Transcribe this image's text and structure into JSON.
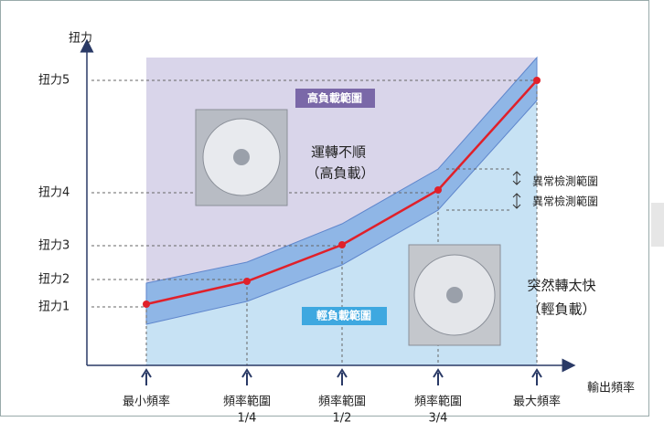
{
  "y_axis": {
    "label": "扭力",
    "ticks": [
      "扭力5",
      "扭力4",
      "扭力3",
      "扭力2",
      "扭力1"
    ]
  },
  "x_axis": {
    "label": "輸出頻率",
    "ticks": [
      [
        "最小頻率"
      ],
      [
        "頻率範圍",
        "1/4"
      ],
      [
        "頻率範圍",
        "1/2"
      ],
      [
        "頻率範圍",
        "3/4"
      ],
      [
        "最大頻率"
      ]
    ]
  },
  "regions": {
    "high": "高負載範圍",
    "low": "輕負載範圍"
  },
  "annotations": {
    "high_load": [
      "運轉不順",
      "（高負載）"
    ],
    "light_load": [
      "突然轉太快",
      "（輕負載）"
    ],
    "detect": [
      "異常檢測範圍",
      "異常檢測範圍"
    ]
  }
}
